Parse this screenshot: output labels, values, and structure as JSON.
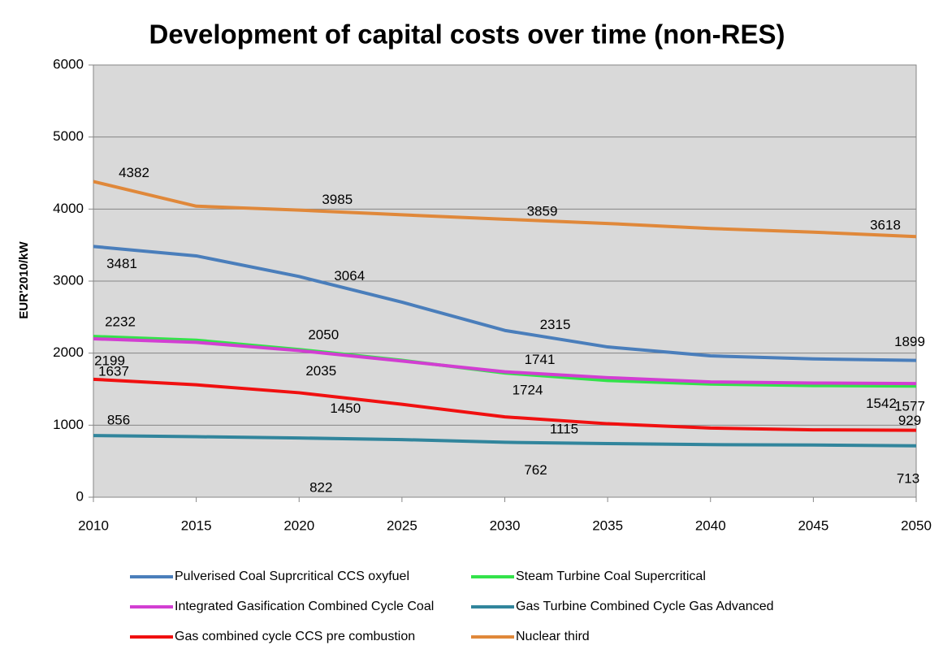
{
  "chart_data": {
    "type": "line",
    "title": "Development of capital costs over time (non-RES)",
    "y_label": "EUR'2010/kW",
    "x": [
      2010,
      2015,
      2020,
      2025,
      2030,
      2035,
      2040,
      2045,
      2050
    ],
    "xlim": [
      2010,
      2050
    ],
    "xticks": [
      2010,
      2015,
      2020,
      2025,
      2030,
      2035,
      2040,
      2045,
      2050
    ],
    "ylim": [
      0,
      6000
    ],
    "yticks": [
      0,
      1000,
      2000,
      3000,
      4000,
      5000,
      6000
    ],
    "grid": true,
    "legend": "bottom",
    "series": [
      {
        "name": "Pulverised Coal Suprcritical CCS oxyfuel",
        "color": "#4a7ebb",
        "values": [
          3481,
          3350,
          3064,
          2707,
          2315,
          2086,
          1962,
          1920,
          1899
        ]
      },
      {
        "name": "Steam Turbine Coal Supercritical",
        "color": "#33e34a",
        "values": [
          2232,
          2180,
          2050,
          1900,
          1724,
          1620,
          1570,
          1550,
          1542
        ]
      },
      {
        "name": "Integrated Gasification  Combined Cycle Coal",
        "color": "#d23ed2",
        "values": [
          2199,
          2150,
          2035,
          1890,
          1741,
          1660,
          1600,
          1585,
          1577
        ]
      },
      {
        "name": "Gas Turbine Combined Cycle Gas Advanced",
        "color": "#31859c",
        "values": [
          856,
          840,
          822,
          800,
          762,
          745,
          730,
          725,
          713
        ]
      },
      {
        "name": "Gas combined cycle CCS pre combustion",
        "color": "#f01010",
        "values": [
          1637,
          1560,
          1450,
          1290,
          1115,
          1020,
          960,
          935,
          929
        ]
      },
      {
        "name": "Nuclear third",
        "color": "#e0883a",
        "values": [
          4382,
          4040,
          3985,
          3920,
          3859,
          3800,
          3730,
          3680,
          3618
        ]
      }
    ]
  }
}
